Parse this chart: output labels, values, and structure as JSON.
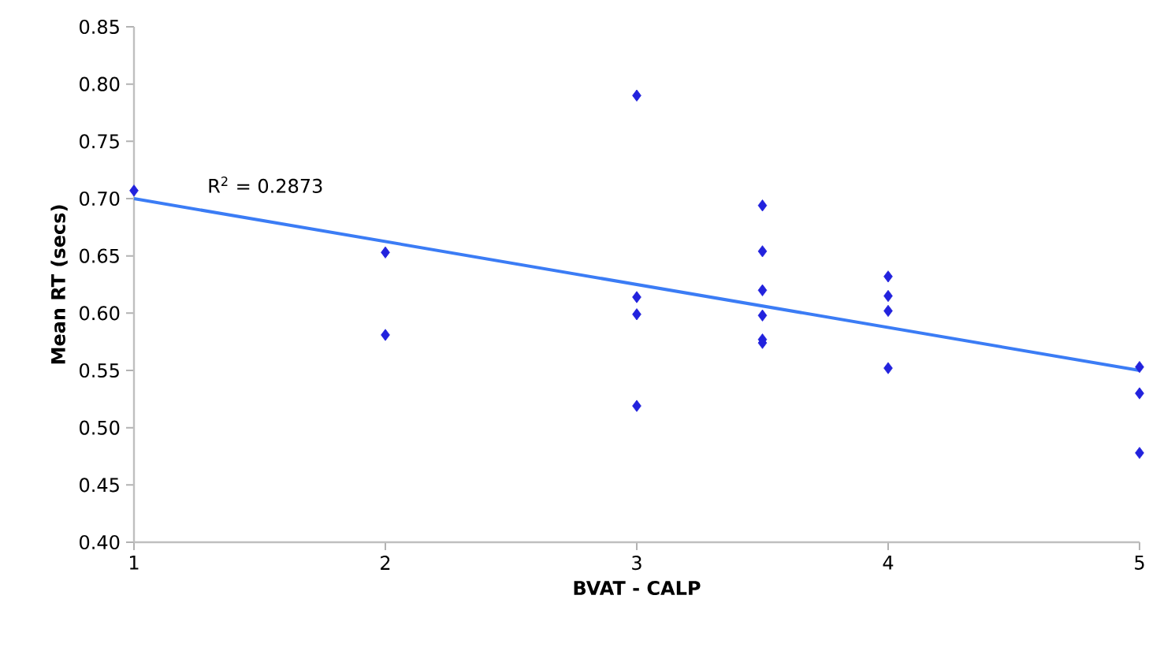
{
  "chart_data": {
    "type": "scatter",
    "xlabel": "BVAT - CALP",
    "ylabel": "Mean RT (secs)",
    "xlim": [
      1,
      5
    ],
    "ylim": [
      0.4,
      0.85
    ],
    "xticks": [
      1,
      2,
      3,
      4,
      5
    ],
    "yticks": [
      {
        "value": 0.4,
        "label": "0.40"
      },
      {
        "value": 0.45,
        "label": "0.45"
      },
      {
        "value": 0.5,
        "label": "0.50"
      },
      {
        "value": 0.55,
        "label": "0.55"
      },
      {
        "value": 0.6,
        "label": "0.60"
      },
      {
        "value": 0.65,
        "label": "0.65"
      },
      {
        "value": 0.7,
        "label": "0.70"
      },
      {
        "value": 0.75,
        "label": "0.75"
      },
      {
        "value": 0.8,
        "label": "0.80"
      },
      {
        "value": 0.85,
        "label": "0.85"
      }
    ],
    "grid": false,
    "annotations": [
      "R$^{2}$ = 0.2873"
    ],
    "series": [
      {
        "marker": "diamond",
        "color": "#2222dd",
        "x": [
          1,
          2,
          2,
          3,
          3,
          3,
          3,
          3.5,
          3.5,
          3.5,
          3.5,
          3.5,
          3.5,
          4,
          4,
          4,
          4,
          5,
          5,
          5
        ],
        "values": [
          0.707,
          0.653,
          0.581,
          0.79,
          0.614,
          0.599,
          0.519,
          0.694,
          0.654,
          0.62,
          0.598,
          0.577,
          0.574,
          0.632,
          0.615,
          0.602,
          0.552,
          0.553,
          0.53,
          0.478
        ]
      },
      {
        "type": "line",
        "color": "#3b7cf5",
        "x": [
          1,
          5
        ],
        "values": [
          0.7,
          0.55
        ]
      }
    ]
  }
}
